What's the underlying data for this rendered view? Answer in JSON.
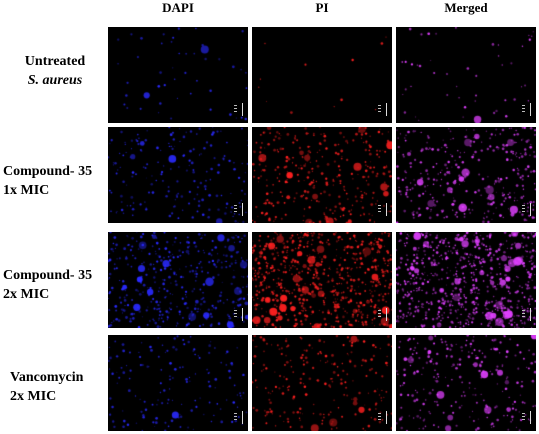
{
  "columns": [
    "DAPI",
    "PI",
    "Merged"
  ],
  "rows": [
    {
      "line1": "Untreated",
      "line2": "S. aureus",
      "line2_italic": true,
      "density": [
        0.05,
        0.0,
        0.05
      ]
    },
    {
      "line1": "Compound- 35",
      "line2": "1x MIC",
      "line2_italic": false,
      "density": [
        0.25,
        0.45,
        0.45
      ]
    },
    {
      "line1": "Compound- 35",
      "line2": "2x MIC",
      "line2_italic": false,
      "density": [
        0.55,
        1.0,
        1.0
      ]
    },
    {
      "line1": "Vancomycin",
      "line2": "2x MIC",
      "line2_italic": false,
      "density": [
        0.2,
        0.3,
        0.35
      ]
    }
  ],
  "colors": {
    "dapi": "#2a2aff",
    "pi": "#ff2020",
    "merged": "#e040ff",
    "background": "#000000"
  }
}
